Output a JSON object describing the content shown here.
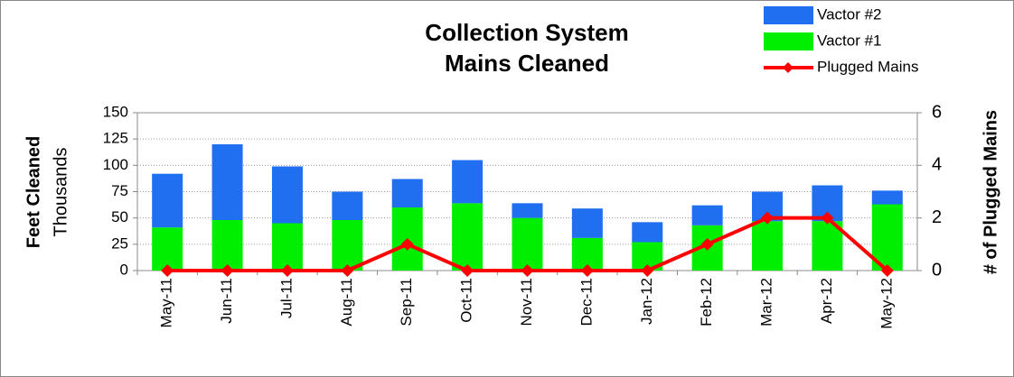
{
  "chart_data": {
    "type": "bar",
    "stacked": true,
    "title": [
      "Collection System",
      "Mains Cleaned"
    ],
    "y_label": "Feet Cleaned",
    "y_unit_label": "Thousands",
    "y2_label": "# of Plugged Mains",
    "categories": [
      "May-11",
      "Jun-11",
      "Jul-11",
      "Aug-11",
      "Sep-11",
      "Oct-11",
      "Nov-11",
      "Dec-11",
      "Jan-12",
      "Feb-12",
      "Mar-12",
      "Apr-12",
      "May-12"
    ],
    "series": [
      {
        "name": "Vactor #1",
        "color": "#00ee00",
        "values": [
          41,
          48,
          45,
          48,
          60,
          64,
          50,
          31,
          27,
          43,
          47,
          47,
          63
        ]
      },
      {
        "name": "Vactor #2",
        "color": "#1f6ff0",
        "values": [
          51,
          72,
          54,
          27,
          27,
          41,
          14,
          28,
          19,
          19,
          28,
          34,
          13
        ]
      },
      {
        "name": "Plugged Mains",
        "type": "line",
        "axis": "y2",
        "color": "#ff0000",
        "values": [
          0,
          0,
          0,
          0,
          1,
          0,
          0,
          0,
          0,
          1,
          2,
          2,
          0
        ]
      }
    ],
    "ylim": [
      0,
      150
    ],
    "yticks": [
      0,
      25,
      50,
      75,
      100,
      125,
      150
    ],
    "y2lim": [
      0,
      6
    ],
    "y2ticks": [
      0,
      2,
      4,
      6
    ],
    "grid": true,
    "legend": "top-right"
  }
}
